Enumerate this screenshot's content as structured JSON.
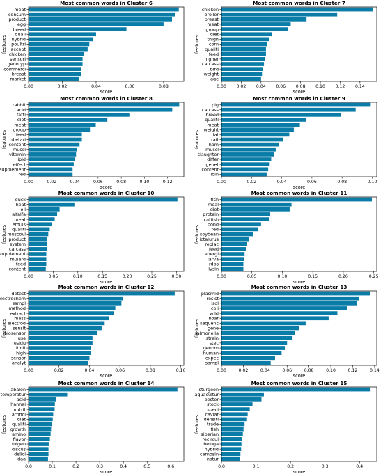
{
  "colors": {
    "bar": "#0a7ca8",
    "axis": "#000000"
  },
  "chart_data": [
    {
      "type": "bar",
      "orientation": "horizontal",
      "title": "Most common words in Cluster 6",
      "xlabel": "score",
      "ylabel": "features",
      "categories": [
        "meat",
        "consum",
        "product",
        "egg",
        "breed",
        "quail",
        "hybrid",
        "poultri",
        "accept",
        "chicken",
        "sensori",
        "genotyp",
        "commerci",
        "breast",
        "market"
      ],
      "values": [
        0.089,
        0.087,
        0.085,
        0.08,
        0.058,
        0.04,
        0.038,
        0.036,
        0.035,
        0.033,
        0.032,
        0.032,
        0.031,
        0.031,
        0.03
      ],
      "xlim": [
        0,
        0.092
      ],
      "xticks": [
        "0.00",
        "0.02",
        "0.04",
        "0.06",
        "0.08"
      ],
      "xtick_values": [
        0,
        0.02,
        0.04,
        0.06,
        0.08
      ]
    },
    {
      "type": "bar",
      "orientation": "horizontal",
      "title": "Most common words in Cluster 7",
      "xlabel": "score",
      "ylabel": "features",
      "categories": [
        "chicken",
        "broiler",
        "breast",
        "meat",
        "group",
        "diet",
        "thigh",
        "corn",
        "qualiti",
        "feed",
        "higher",
        "carcass",
        "bird",
        "weight",
        "age"
      ],
      "values": [
        0.153,
        0.117,
        0.086,
        0.07,
        0.067,
        0.051,
        0.048,
        0.046,
        0.045,
        0.045,
        0.044,
        0.043,
        0.042,
        0.041,
        0.04
      ],
      "xlim": [
        0,
        0.157
      ],
      "xticks": [
        "0.00",
        "0.02",
        "0.04",
        "0.06",
        "0.08",
        "0.10",
        "0.12",
        "0.14"
      ],
      "xtick_values": [
        0,
        0.02,
        0.04,
        0.06,
        0.08,
        0.1,
        0.12,
        0.14
      ]
    },
    {
      "type": "bar",
      "orientation": "horizontal",
      "title": "Most common words in Cluster 8",
      "xlabel": "score",
      "ylabel": "features",
      "categories": [
        "rabbit",
        "acid",
        "fatti",
        "diet",
        "meat",
        "group",
        "feed",
        "dietari",
        "content",
        "muscl",
        "vitamin",
        "lipid",
        "effect",
        "supplement",
        "fed"
      ],
      "values": [
        0.13,
        0.124,
        0.087,
        0.068,
        0.058,
        0.053,
        0.046,
        0.046,
        0.044,
        0.042,
        0.041,
        0.04,
        0.039,
        0.038,
        0.038
      ],
      "xlim": [
        0,
        0.134
      ],
      "xticks": [
        "0.00",
        "0.02",
        "0.04",
        "0.06",
        "0.08",
        "0.10",
        "0.12"
      ],
      "xtick_values": [
        0,
        0.02,
        0.04,
        0.06,
        0.08,
        0.1,
        0.12
      ]
    },
    {
      "type": "bar",
      "orientation": "horizontal",
      "title": "Most common words in Cluster 9",
      "xlabel": "score",
      "ylabel": "features",
      "categories": [
        "pig",
        "carcass",
        "breed",
        "qualiti",
        "meat",
        "weight",
        "fat",
        "trait",
        "ham",
        "muscl",
        "slaughter",
        "differ",
        "genet",
        "content",
        "loin"
      ],
      "values": [
        0.099,
        0.089,
        0.079,
        0.056,
        0.052,
        0.048,
        0.045,
        0.041,
        0.038,
        0.036,
        0.035,
        0.033,
        0.032,
        0.031,
        0.03
      ],
      "xlim": [
        0,
        0.103
      ],
      "xticks": [
        "0.00",
        "0.02",
        "0.04",
        "0.06",
        "0.08",
        "0.10"
      ],
      "xtick_values": [
        0,
        0.02,
        0.04,
        0.06,
        0.08,
        0.1
      ]
    },
    {
      "type": "bar",
      "orientation": "horizontal",
      "title": "Most common words in Cluster 10",
      "xlabel": "score",
      "ylabel": "features",
      "categories": [
        "duck",
        "heat",
        "oil",
        "alfalfa",
        "meat",
        "emuls",
        "qualiti",
        "muscovi",
        "product",
        "system",
        "carcass",
        "supplement",
        "mulard",
        "feed",
        "content"
      ],
      "values": [
        0.302,
        0.093,
        0.063,
        0.058,
        0.053,
        0.047,
        0.043,
        0.04,
        0.038,
        0.037,
        0.037,
        0.036,
        0.036,
        0.036,
        0.035
      ],
      "xlim": [
        0,
        0.315
      ],
      "xticks": [
        "0.00",
        "0.05",
        "0.10",
        "0.15",
        "0.20",
        "0.25",
        "0.30"
      ],
      "xtick_values": [
        0,
        0.05,
        0.1,
        0.15,
        0.2,
        0.25,
        0.3
      ]
    },
    {
      "type": "bar",
      "orientation": "horizontal",
      "title": "Most common words in Cluster 11",
      "xlabel": "score",
      "ylabel": "features",
      "categories": [
        "fish",
        "meal",
        "diet",
        "protein",
        "catfish",
        "pond",
        "fed",
        "soybean",
        "ictalurus",
        "replac",
        "feed",
        "energi",
        "larva",
        "rdps",
        "lysin"
      ],
      "values": [
        0.247,
        0.115,
        0.112,
        0.08,
        0.078,
        0.065,
        0.06,
        0.052,
        0.045,
        0.042,
        0.04,
        0.038,
        0.037,
        0.036,
        0.036
      ],
      "xlim": [
        0,
        0.255
      ],
      "xticks": [
        "0.00",
        "0.05",
        "0.10",
        "0.15",
        "0.20",
        "0.25"
      ],
      "xtick_values": [
        0,
        0.05,
        0.1,
        0.15,
        0.2,
        0.25
      ]
    },
    {
      "type": "bar",
      "orientation": "horizontal",
      "title": "Most common words in Cluster 12",
      "xlabel": "score",
      "ylabel": "features",
      "categories": [
        "detect",
        "electrochem",
        "sampl",
        "method",
        "extract",
        "mass",
        "electrod",
        "sensit",
        "biosensor",
        "use",
        "residu",
        "limit",
        "high",
        "sensor",
        "analyt"
      ],
      "values": [
        0.096,
        0.062,
        0.061,
        0.057,
        0.056,
        0.053,
        0.05,
        0.048,
        0.045,
        0.042,
        0.042,
        0.041,
        0.041,
        0.04,
        0.039
      ],
      "xlim": [
        0,
        0.102
      ],
      "xticks": [
        "0.00",
        "0.02",
        "0.04",
        "0.06",
        "0.08",
        "0.10"
      ],
      "xtick_values": [
        0,
        0.02,
        0.04,
        0.06,
        0.08,
        0.1
      ]
    },
    {
      "type": "bar",
      "orientation": "horizontal",
      "title": "Most common words in Cluster 13",
      "xlabel": "score",
      "ylabel": "features",
      "categories": [
        "plasmid",
        "resist",
        "isol",
        "coli",
        "wild",
        "boar",
        "sequenc",
        "gene",
        "salmonella",
        "strain",
        "stec",
        "genom",
        "human",
        "expec",
        "sampl"
      ],
      "values": [
        0.136,
        0.126,
        0.124,
        0.115,
        0.106,
        0.098,
        0.077,
        0.071,
        0.067,
        0.065,
        0.06,
        0.058,
        0.055,
        0.049,
        0.045
      ],
      "xlim": [
        0,
        0.142
      ],
      "xticks": [
        "0.00",
        "0.02",
        "0.04",
        "0.06",
        "0.08",
        "0.10",
        "0.12",
        "0.14"
      ],
      "xtick_values": [
        0,
        0.02,
        0.04,
        0.06,
        0.08,
        0.1,
        0.12,
        0.14
      ]
    },
    {
      "type": "bar",
      "orientation": "horizontal",
      "title": "Most common words in Cluster 14",
      "xlabel": "score",
      "ylabel": "features",
      "categories": [
        "abalon",
        "temperatur",
        "acid",
        "hannai",
        "nutrit",
        "artifici",
        "diet",
        "qualiti",
        "growth",
        "amino",
        "flavor",
        "fulgen",
        "discus",
        "delici",
        "daa"
      ],
      "values": [
        0.628,
        0.163,
        0.117,
        0.111,
        0.11,
        0.104,
        0.102,
        0.097,
        0.095,
        0.093,
        0.09,
        0.085,
        0.084,
        0.084,
        0.082
      ],
      "xlim": [
        0,
        0.655
      ],
      "xticks": [
        "0.0",
        "0.1",
        "0.2",
        "0.3",
        "0.4",
        "0.5",
        "0.6"
      ],
      "xtick_values": [
        0,
        0.1,
        0.2,
        0.3,
        0.4,
        0.5,
        0.6
      ]
    },
    {
      "type": "bar",
      "orientation": "horizontal",
      "title": "Most common words in Cluster 15",
      "xlabel": "score",
      "ylabel": "features",
      "categories": [
        "sturgeon",
        "aquacultur",
        "bester",
        "stock",
        "speci",
        "caviar",
        "densiti",
        "trade",
        "fish",
        "siberian",
        "recircul",
        "beluga",
        "hybrid",
        "carnosin",
        "natur"
      ],
      "values": [
        0.432,
        0.123,
        0.116,
        0.09,
        0.082,
        0.076,
        0.072,
        0.067,
        0.064,
        0.062,
        0.06,
        0.058,
        0.057,
        0.055,
        0.053
      ],
      "xlim": [
        0,
        0.45
      ],
      "xticks": [
        "0.0",
        "0.1",
        "0.2",
        "0.3",
        "0.4"
      ],
      "xtick_values": [
        0,
        0.1,
        0.2,
        0.3,
        0.4
      ]
    }
  ]
}
